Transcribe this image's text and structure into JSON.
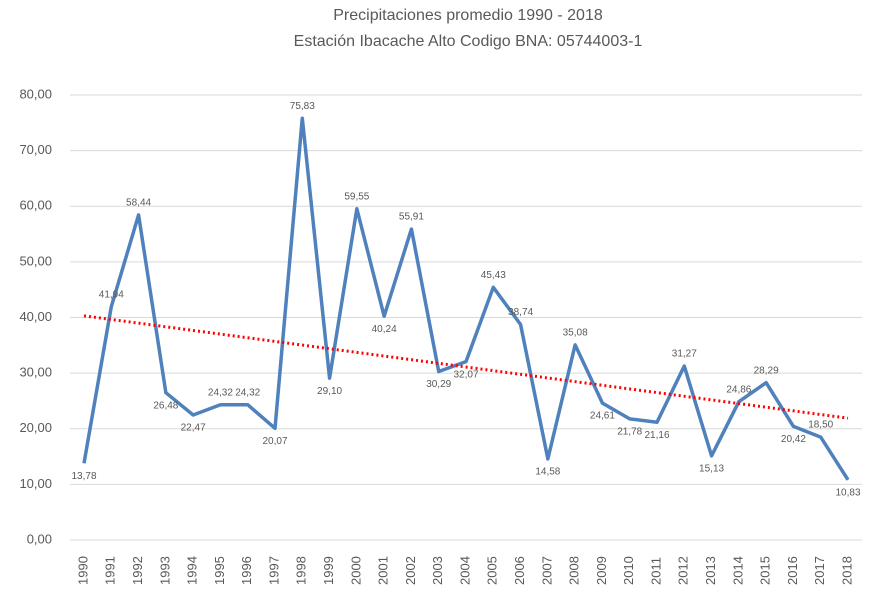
{
  "chart_data": {
    "type": "line",
    "title": [
      "Precipitaciones promedio 1990 - 2018",
      "Estación Ibacache Alto Codigo BNA:  05744003-1"
    ],
    "categories": [
      "1990",
      "1991",
      "1992",
      "1993",
      "1994",
      "1995",
      "1996",
      "1997",
      "1998",
      "1999",
      "2000",
      "2001",
      "2002",
      "2003",
      "2004",
      "2005",
      "2006",
      "2007",
      "2008",
      "2009",
      "2010",
      "2011",
      "2012",
      "2013",
      "2014",
      "2015",
      "2016",
      "2017",
      "2018"
    ],
    "series": [
      {
        "color": "#4f81bd",
        "values": [
          13.78,
          41.94,
          58.44,
          26.48,
          22.47,
          24.32,
          24.32,
          20.07,
          75.83,
          29.1,
          59.55,
          40.24,
          55.91,
          30.29,
          32.07,
          45.43,
          38.74,
          14.58,
          35.08,
          24.61,
          21.78,
          21.16,
          31.27,
          15.13,
          24.86,
          28.29,
          20.42,
          18.5,
          10.83
        ],
        "value_labels": [
          "13,78",
          "41,94",
          "58,44",
          "26,48",
          "22,47",
          "24,32",
          "24,32",
          "20,07",
          "75,83",
          "29,10",
          "59,55",
          "40,24",
          "55,91",
          "30,29",
          "32,07",
          "45,43",
          "38,74",
          "14,58",
          "35,08",
          "24,61",
          "21,78",
          "21,16",
          "31,27",
          "15,13",
          "24,86",
          "28,29",
          "20,42",
          "18,50",
          "10,83"
        ]
      }
    ],
    "trend": {
      "color": "#ff0000",
      "start": 40.3,
      "end": 21.9
    },
    "ylim": [
      0,
      80
    ],
    "yticks": [
      {
        "value": 0,
        "label": "0,00"
      },
      {
        "value": 10,
        "label": "10,00"
      },
      {
        "value": 20,
        "label": "20,00"
      },
      {
        "value": 30,
        "label": "30,00"
      },
      {
        "value": 40,
        "label": "40,00"
      },
      {
        "value": 50,
        "label": "50,00"
      },
      {
        "value": 60,
        "label": "60,00"
      },
      {
        "value": 70,
        "label": "70,00"
      },
      {
        "value": 80,
        "label": "80,00"
      }
    ],
    "grid": true
  }
}
